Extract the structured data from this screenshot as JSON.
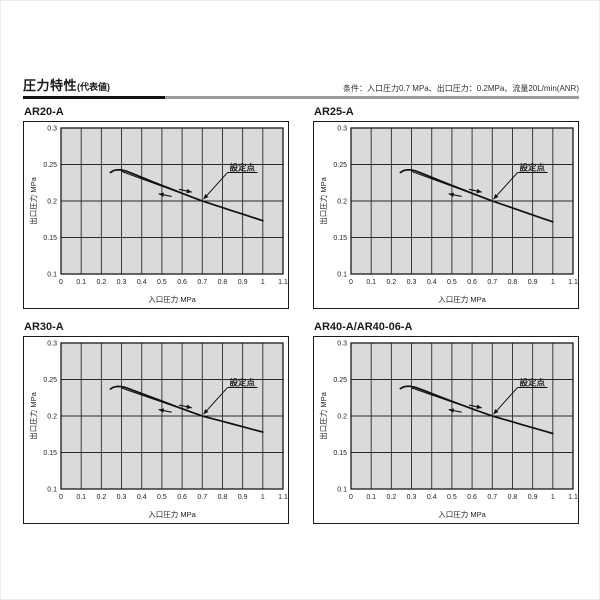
{
  "page": {
    "title": "圧力特性",
    "title_suffix": "(代表値)",
    "condition": "条件：入口圧力0.7 MPa、出口圧力：0.2MPa、流量20L/min(ANR)"
  },
  "colors": {
    "plot_bg": "#d9dadb",
    "grid_line": "#2b2b2b",
    "box_border": "#1a1a1a",
    "curve": "#111111",
    "text": "#222222",
    "title_bar_black": "#111111",
    "title_bar_gray": "#9c9c9c"
  },
  "chart_data": [
    {
      "type": "line",
      "title": "AR20-A",
      "xlabel": "入口圧力 MPa",
      "ylabel": "出口圧力 MPa",
      "xlim": [
        0,
        1.1
      ],
      "ylim": [
        0.1,
        0.3
      ],
      "grid": true,
      "xticks": {
        "values": [
          0,
          0.1,
          0.2,
          0.3,
          0.4,
          0.5,
          0.6,
          0.7,
          0.8,
          0.9,
          1,
          1.1
        ],
        "labels": [
          "0",
          "0.1",
          "0.2",
          "0.3",
          "0.4",
          "0.5",
          "0.6",
          "0.7",
          "0.8",
          "0.9",
          "1",
          "1.1"
        ]
      },
      "yticks": {
        "values": [
          0.3,
          0.25,
          0.2,
          0.15,
          0.1
        ],
        "labels": [
          "0.3",
          "0.25",
          "0.2",
          "0.15",
          "0.1"
        ]
      },
      "series": [
        {
          "name": "outlet-pressure-curve",
          "x": [
            0.245,
            0.26,
            0.28,
            0.3,
            0.32,
            0.36,
            0.4,
            0.45,
            0.5,
            0.55,
            0.6,
            0.65,
            0.7,
            0.75,
            0.8,
            0.85,
            0.9,
            0.95,
            1.0
          ],
          "y": [
            0.239,
            0.2416,
            0.2428,
            0.2426,
            0.2412,
            0.2368,
            0.2324,
            0.2269,
            0.2214,
            0.216,
            0.2106,
            0.2052,
            0.2,
            0.1955,
            0.191,
            0.1865,
            0.182,
            0.1775,
            0.173
          ]
        },
        {
          "name": "hysteresis-return-line",
          "x": [
            0.3,
            0.7
          ],
          "y": [
            0.2406,
            0.2003
          ]
        }
      ],
      "direction_arrows": [
        {
          "from": [
            0.585,
            0.216
          ],
          "to": [
            0.648,
            0.2122
          ]
        },
        {
          "from": [
            0.548,
            0.2062
          ],
          "to": [
            0.484,
            0.2098
          ]
        }
      ],
      "annotation": {
        "label": "設定点",
        "label_pos": [
          0.835,
          0.242
        ],
        "target": [
          0.706,
          0.2025
        ]
      }
    },
    {
      "type": "line",
      "title": "AR25-A",
      "xlabel": "入口圧力 MPa",
      "ylabel": "出口圧力 MPa",
      "xlim": [
        0,
        1.1
      ],
      "ylim": [
        0.1,
        0.3
      ],
      "grid": true,
      "xticks": {
        "values": [
          0,
          0.1,
          0.2,
          0.3,
          0.4,
          0.5,
          0.6,
          0.7,
          0.8,
          0.9,
          1,
          1.1
        ],
        "labels": [
          "0",
          "0.1",
          "0.2",
          "0.3",
          "0.4",
          "0.5",
          "0.6",
          "0.7",
          "0.8",
          "0.9",
          "1",
          "1.1"
        ]
      },
      "yticks": {
        "values": [
          0.3,
          0.25,
          0.2,
          0.15,
          0.1
        ],
        "labels": [
          "0.3",
          "0.25",
          "0.2",
          "0.15",
          "0.1"
        ]
      },
      "series": [
        {
          "name": "outlet-pressure-curve",
          "x": [
            0.245,
            0.26,
            0.28,
            0.3,
            0.32,
            0.36,
            0.4,
            0.45,
            0.5,
            0.55,
            0.6,
            0.65,
            0.7,
            0.75,
            0.8,
            0.85,
            0.9,
            0.95,
            1.0
          ],
          "y": [
            0.239,
            0.2416,
            0.2428,
            0.2426,
            0.2412,
            0.2368,
            0.2324,
            0.2269,
            0.2214,
            0.216,
            0.2106,
            0.2052,
            0.2,
            0.1952,
            0.1905,
            0.1857,
            0.181,
            0.1762,
            0.1715
          ]
        },
        {
          "name": "hysteresis-return-line",
          "x": [
            0.3,
            0.7
          ],
          "y": [
            0.2406,
            0.2003
          ]
        }
      ],
      "direction_arrows": [
        {
          "from": [
            0.585,
            0.216
          ],
          "to": [
            0.648,
            0.2122
          ]
        },
        {
          "from": [
            0.548,
            0.2062
          ],
          "to": [
            0.484,
            0.2098
          ]
        }
      ],
      "annotation": {
        "label": "設定点",
        "label_pos": [
          0.835,
          0.242
        ],
        "target": [
          0.706,
          0.2025
        ]
      }
    },
    {
      "type": "line",
      "title": "AR30-A",
      "xlabel": "入口圧力 MPa",
      "ylabel": "出口圧力 MPa",
      "xlim": [
        0,
        1.1
      ],
      "ylim": [
        0.1,
        0.3
      ],
      "grid": true,
      "xticks": {
        "values": [
          0,
          0.1,
          0.2,
          0.3,
          0.4,
          0.5,
          0.6,
          0.7,
          0.8,
          0.9,
          1,
          1.1
        ],
        "labels": [
          "0",
          "0.1",
          "0.2",
          "0.3",
          "0.4",
          "0.5",
          "0.6",
          "0.7",
          "0.8",
          "0.9",
          "1",
          "1.1"
        ]
      },
      "yticks": {
        "values": [
          0.3,
          0.25,
          0.2,
          0.15,
          0.1
        ],
        "labels": [
          "0.3",
          "0.25",
          "0.2",
          "0.15",
          "0.1"
        ]
      },
      "series": [
        {
          "name": "outlet-pressure-curve",
          "x": [
            0.245,
            0.26,
            0.28,
            0.3,
            0.32,
            0.36,
            0.4,
            0.45,
            0.5,
            0.55,
            0.6,
            0.65,
            0.7,
            0.75,
            0.8,
            0.85,
            0.9,
            0.95,
            1.0
          ],
          "y": [
            0.237,
            0.2394,
            0.2405,
            0.2403,
            0.239,
            0.235,
            0.2308,
            0.2256,
            0.2204,
            0.2152,
            0.21,
            0.205,
            0.2,
            0.1963,
            0.1927,
            0.189,
            0.1853,
            0.1817,
            0.178
          ]
        },
        {
          "name": "hysteresis-return-line",
          "x": [
            0.3,
            0.7
          ],
          "y": [
            0.2383,
            0.2003
          ]
        }
      ],
      "direction_arrows": [
        {
          "from": [
            0.585,
            0.215
          ],
          "to": [
            0.648,
            0.2112
          ]
        },
        {
          "from": [
            0.548,
            0.2052
          ],
          "to": [
            0.484,
            0.2088
          ]
        }
      ],
      "annotation": {
        "label": "設定点",
        "label_pos": [
          0.835,
          0.242
        ],
        "target": [
          0.706,
          0.2025
        ]
      }
    },
    {
      "type": "line",
      "title": "AR40-A/AR40-06-A",
      "xlabel": "入口圧力 MPa",
      "ylabel": "出口圧力 MPa",
      "xlim": [
        0,
        1.1
      ],
      "ylim": [
        0.1,
        0.3
      ],
      "grid": true,
      "xticks": {
        "values": [
          0,
          0.1,
          0.2,
          0.3,
          0.4,
          0.5,
          0.6,
          0.7,
          0.8,
          0.9,
          1,
          1.1
        ],
        "labels": [
          "0",
          "0.1",
          "0.2",
          "0.3",
          "0.4",
          "0.5",
          "0.6",
          "0.7",
          "0.8",
          "0.9",
          "1",
          "1.1"
        ]
      },
      "yticks": {
        "values": [
          0.3,
          0.25,
          0.2,
          0.15,
          0.1
        ],
        "labels": [
          "0.3",
          "0.25",
          "0.2",
          "0.15",
          "0.1"
        ]
      },
      "series": [
        {
          "name": "outlet-pressure-curve",
          "x": [
            0.245,
            0.26,
            0.28,
            0.3,
            0.32,
            0.36,
            0.4,
            0.45,
            0.5,
            0.55,
            0.6,
            0.65,
            0.7,
            0.75,
            0.8,
            0.85,
            0.9,
            0.95,
            1.0
          ],
          "y": [
            0.2375,
            0.2398,
            0.2408,
            0.2406,
            0.2392,
            0.2352,
            0.2308,
            0.2255,
            0.2202,
            0.215,
            0.2098,
            0.2048,
            0.2,
            0.196,
            0.192,
            0.188,
            0.184,
            0.18,
            0.176
          ]
        },
        {
          "name": "hysteresis-return-line",
          "x": [
            0.3,
            0.7
          ],
          "y": [
            0.2386,
            0.2003
          ]
        }
      ],
      "direction_arrows": [
        {
          "from": [
            0.585,
            0.215
          ],
          "to": [
            0.648,
            0.2112
          ]
        },
        {
          "from": [
            0.548,
            0.2052
          ],
          "to": [
            0.484,
            0.2088
          ]
        }
      ],
      "annotation": {
        "label": "設定点",
        "label_pos": [
          0.835,
          0.242
        ],
        "target": [
          0.706,
          0.2025
        ]
      }
    }
  ]
}
